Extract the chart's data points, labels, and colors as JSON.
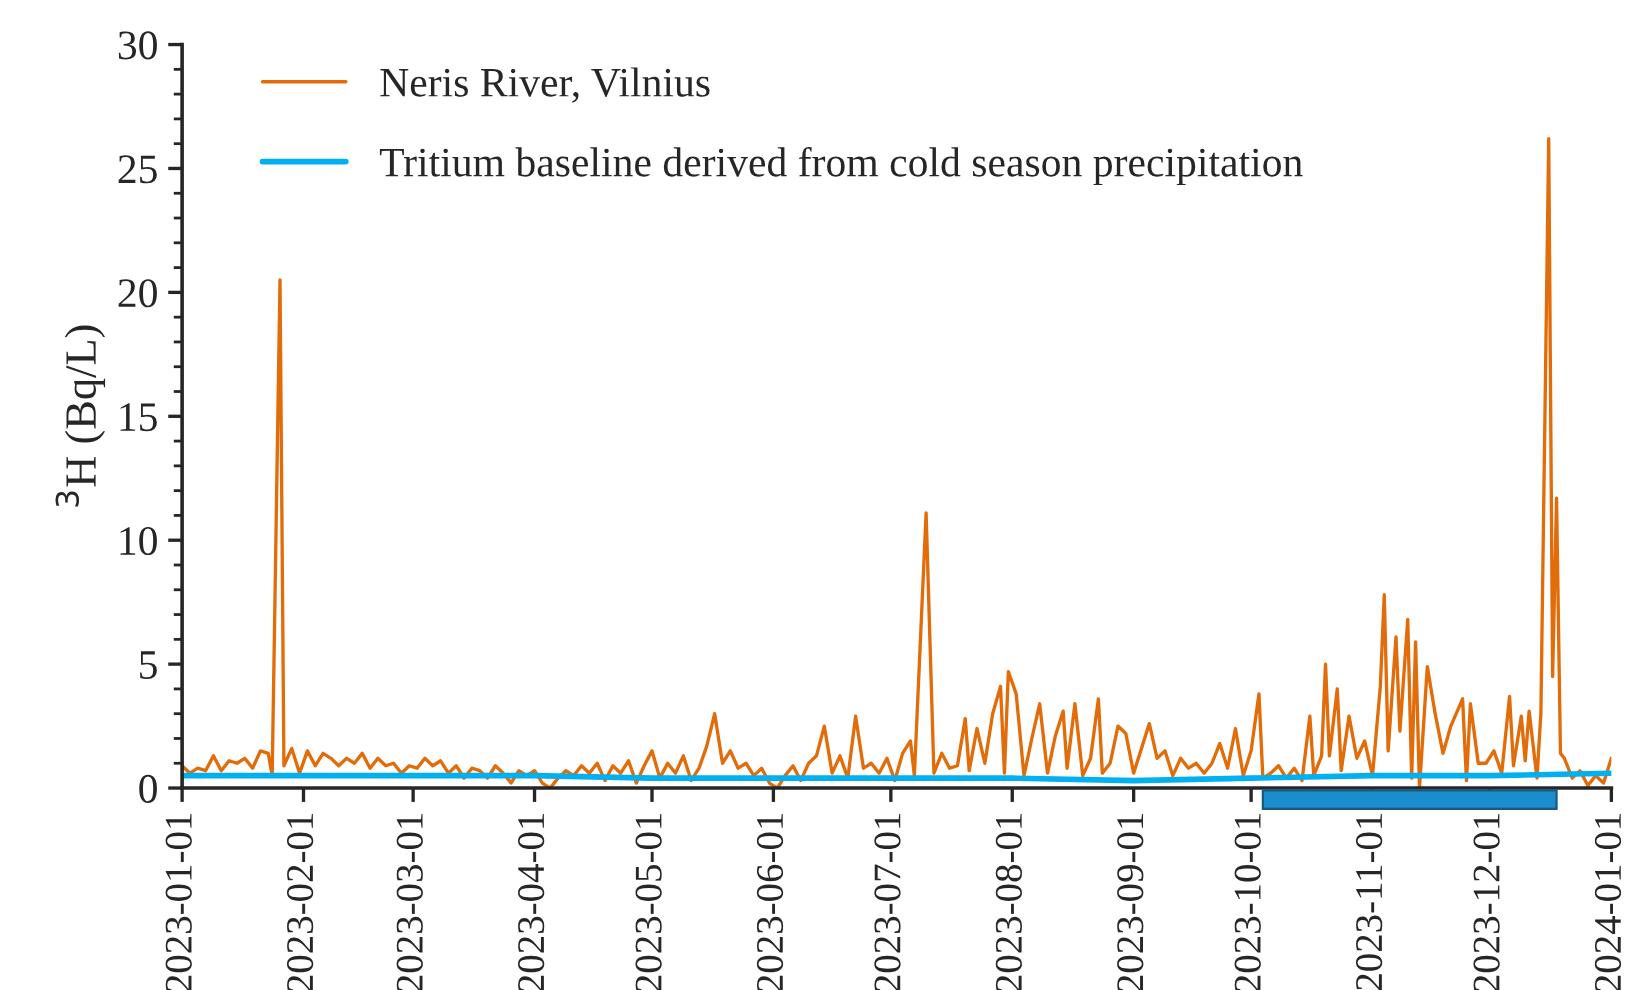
{
  "chart_data": {
    "type": "line",
    "ylabel": "$^{3}$H (Bq/L)",
    "xlim": [
      "2023-01-01",
      "2024-01-01"
    ],
    "xticks": [
      "2023-01-01",
      "2023-02-01",
      "2023-03-01",
      "2023-04-01",
      "2023-05-01",
      "2023-06-01",
      "2023-07-01",
      "2023-08-01",
      "2023-09-01",
      "2023-10-01",
      "2023-11-01",
      "2023-12-01",
      "2024-01-01"
    ],
    "ylim": [
      0,
      30
    ],
    "yticks": [
      0,
      5,
      10,
      15,
      20,
      25,
      30
    ],
    "grid": false,
    "legend": "top left",
    "line_style": "solid",
    "marker": "none",
    "series": [
      {
        "name": "Neris River, Vilnius",
        "color": "#e36c0a",
        "x": [
          "2023-01-01",
          "2023-01-03",
          "2023-01-05",
          "2023-01-07",
          "2023-01-09",
          "2023-01-11",
          "2023-01-13",
          "2023-01-15",
          "2023-01-17",
          "2023-01-19",
          "2023-01-21",
          "2023-01-23",
          "2023-01-24",
          "2023-01-26",
          "2023-01-27",
          "2023-01-29",
          "2023-01-31",
          "2023-02-02",
          "2023-02-04",
          "2023-02-06",
          "2023-02-08",
          "2023-02-10",
          "2023-02-12",
          "2023-02-14",
          "2023-02-16",
          "2023-02-18",
          "2023-02-20",
          "2023-02-22",
          "2023-02-24",
          "2023-02-26",
          "2023-02-28",
          "2023-03-02",
          "2023-03-04",
          "2023-03-06",
          "2023-03-08",
          "2023-03-10",
          "2023-03-12",
          "2023-03-14",
          "2023-03-16",
          "2023-03-18",
          "2023-03-20",
          "2023-03-22",
          "2023-03-24",
          "2023-03-26",
          "2023-03-28",
          "2023-03-30",
          "2023-04-01",
          "2023-04-03",
          "2023-04-05",
          "2023-04-07",
          "2023-04-09",
          "2023-04-11",
          "2023-04-13",
          "2023-04-15",
          "2023-04-17",
          "2023-04-19",
          "2023-04-21",
          "2023-04-23",
          "2023-04-25",
          "2023-04-27",
          "2023-04-29",
          "2023-05-01",
          "2023-05-03",
          "2023-05-05",
          "2023-05-07",
          "2023-05-09",
          "2023-05-11",
          "2023-05-13",
          "2023-05-15",
          "2023-05-17",
          "2023-05-19",
          "2023-05-21",
          "2023-05-23",
          "2023-05-25",
          "2023-05-27",
          "2023-05-29",
          "2023-05-31",
          "2023-06-02",
          "2023-06-04",
          "2023-06-06",
          "2023-06-08",
          "2023-06-10",
          "2023-06-12",
          "2023-06-14",
          "2023-06-16",
          "2023-06-18",
          "2023-06-20",
          "2023-06-22",
          "2023-06-24",
          "2023-06-26",
          "2023-06-28",
          "2023-06-30",
          "2023-07-02",
          "2023-07-04",
          "2023-07-06",
          "2023-07-07",
          "2023-07-10",
          "2023-07-12",
          "2023-07-14",
          "2023-07-16",
          "2023-07-18",
          "2023-07-20",
          "2023-07-21",
          "2023-07-23",
          "2023-07-25",
          "2023-07-27",
          "2023-07-29",
          "2023-07-30",
          "2023-07-31",
          "2023-08-02",
          "2023-08-04",
          "2023-08-06",
          "2023-08-08",
          "2023-08-10",
          "2023-08-12",
          "2023-08-14",
          "2023-08-15",
          "2023-08-17",
          "2023-08-19",
          "2023-08-21",
          "2023-08-23",
          "2023-08-24",
          "2023-08-26",
          "2023-08-28",
          "2023-08-30",
          "2023-09-01",
          "2023-09-03",
          "2023-09-05",
          "2023-09-07",
          "2023-09-09",
          "2023-09-11",
          "2023-09-13",
          "2023-09-15",
          "2023-09-17",
          "2023-09-19",
          "2023-09-21",
          "2023-09-23",
          "2023-09-25",
          "2023-09-27",
          "2023-09-29",
          "2023-10-01",
          "2023-10-03",
          "2023-10-04",
          "2023-10-06",
          "2023-10-08",
          "2023-10-10",
          "2023-10-12",
          "2023-10-14",
          "2023-10-16",
          "2023-10-17",
          "2023-10-19",
          "2023-10-20",
          "2023-10-21",
          "2023-10-23",
          "2023-10-24",
          "2023-10-26",
          "2023-10-28",
          "2023-10-30",
          "2023-11-01",
          "2023-11-03",
          "2023-11-04",
          "2023-11-05",
          "2023-11-07",
          "2023-11-08",
          "2023-11-10",
          "2023-11-11",
          "2023-11-12",
          "2023-11-13",
          "2023-11-15",
          "2023-11-17",
          "2023-11-19",
          "2023-11-21",
          "2023-11-24",
          "2023-11-25",
          "2023-11-26",
          "2023-11-28",
          "2023-11-30",
          "2023-12-02",
          "2023-12-04",
          "2023-12-06",
          "2023-12-07",
          "2023-12-09",
          "2023-12-10",
          "2023-12-11",
          "2023-12-13",
          "2023-12-14",
          "2023-12-16",
          "2023-12-17",
          "2023-12-18",
          "2023-12-19",
          "2023-12-20",
          "2023-12-22",
          "2023-12-24",
          "2023-12-26",
          "2023-12-28",
          "2023-12-30",
          "2024-01-01"
        ],
        "values": [
          0.9,
          0.6,
          0.8,
          0.7,
          1.3,
          0.7,
          1.1,
          1.0,
          1.2,
          0.8,
          1.5,
          1.4,
          0.5,
          20.5,
          0.9,
          1.6,
          0.6,
          1.5,
          0.9,
          1.4,
          1.2,
          0.9,
          1.2,
          1.0,
          1.4,
          0.8,
          1.2,
          0.9,
          1.0,
          0.6,
          0.9,
          0.8,
          1.2,
          0.9,
          1.1,
          0.6,
          0.9,
          0.4,
          0.8,
          0.7,
          0.4,
          0.9,
          0.6,
          0.2,
          0.7,
          0.5,
          0.7,
          0.2,
          0.0,
          0.4,
          0.7,
          0.5,
          0.9,
          0.6,
          1.0,
          0.3,
          0.9,
          0.6,
          1.1,
          0.2,
          0.9,
          1.5,
          0.4,
          1.0,
          0.6,
          1.3,
          0.3,
          0.8,
          1.7,
          3.0,
          1.0,
          1.5,
          0.8,
          1.0,
          0.5,
          0.8,
          0.2,
          0.0,
          0.5,
          0.9,
          0.3,
          1.0,
          1.3,
          2.5,
          0.6,
          1.3,
          0.4,
          2.9,
          0.8,
          1.0,
          0.6,
          1.2,
          0.3,
          1.4,
          1.9,
          0.5,
          11.1,
          0.6,
          1.4,
          0.8,
          0.9,
          2.8,
          0.7,
          2.4,
          1.0,
          3.0,
          4.1,
          0.6,
          4.7,
          3.8,
          0.5,
          2.0,
          3.4,
          0.6,
          2.1,
          3.1,
          0.8,
          3.4,
          0.5,
          1.2,
          3.6,
          0.6,
          1.0,
          2.5,
          2.2,
          0.6,
          1.6,
          2.6,
          1.2,
          1.5,
          0.5,
          1.2,
          0.8,
          1.0,
          0.6,
          1.0,
          1.8,
          0.8,
          2.4,
          0.5,
          1.5,
          3.8,
          0.4,
          0.6,
          0.9,
          0.4,
          0.8,
          0.3,
          2.9,
          0.5,
          1.3,
          5.0,
          1.3,
          4.0,
          0.7,
          2.9,
          1.2,
          1.9,
          0.5,
          4.1,
          7.8,
          1.5,
          6.1,
          2.3,
          6.8,
          0.4,
          5.9,
          0.0,
          4.9,
          3.0,
          1.4,
          2.5,
          3.6,
          0.3,
          3.4,
          1.0,
          1.0,
          1.5,
          0.6,
          3.7,
          0.9,
          2.9,
          1.1,
          3.1,
          0.4,
          3.0,
          26.2,
          4.5,
          11.7,
          1.4,
          1.2,
          0.4,
          0.7,
          0.1,
          0.5,
          0.2,
          1.2
        ]
      },
      {
        "name": "Tritium baseline derived from cold season precipitation",
        "color": "#00b0f0",
        "x": [
          "2023-01-01",
          "2023-02-01",
          "2023-03-01",
          "2023-04-01",
          "2023-05-01",
          "2023-06-01",
          "2023-07-01",
          "2023-08-01",
          "2023-09-01",
          "2023-10-01",
          "2023-11-01",
          "2023-12-01",
          "2024-01-01"
        ],
        "values": [
          0.5,
          0.5,
          0.5,
          0.5,
          0.4,
          0.4,
          0.4,
          0.4,
          0.3,
          0.4,
          0.5,
          0.5,
          0.6
        ]
      }
    ]
  }
}
